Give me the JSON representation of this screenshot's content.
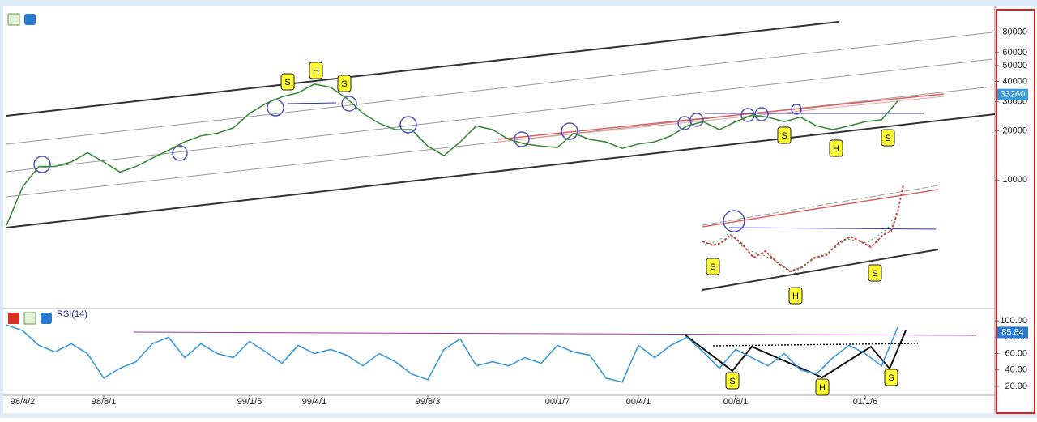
{
  "chart_data": [
    {
      "type": "line",
      "color": "#3c8a3c",
      "log_scale": true,
      "values": [
        5300,
        9100,
        12100,
        12100,
        12900,
        14700,
        12900,
        11200,
        12100,
        13600,
        15200,
        17100,
        18600,
        19300,
        20800,
        25500,
        29300,
        32200,
        34100,
        38500,
        36800,
        31500,
        25500,
        22200,
        20300,
        20300,
        16100,
        14100,
        17100,
        21400,
        20300,
        17700,
        16600,
        16100,
        15800,
        19300,
        17700,
        17100,
        15600,
        16600,
        17100,
        18600,
        21400,
        22700,
        20300,
        22700,
        24900,
        24200,
        22700,
        24200,
        21400,
        20300,
        21400,
        22700,
        23300,
        30300
      ],
      "ylim": [
        1700,
        112000
      ],
      "yticks": [
        10000,
        20000,
        30000,
        40000,
        50000,
        60000,
        80000
      ],
      "last_value": 33260,
      "annotations": [
        "S",
        "H",
        "S",
        "S",
        "H",
        "S",
        "S",
        "H",
        "S"
      ]
    },
    {
      "type": "line",
      "title": "RSI(14)",
      "color": "#3a9ad9",
      "categories": [
        null,
        "98/4/2",
        null,
        null,
        null,
        null,
        "98/8/1",
        null,
        null,
        null,
        null,
        null,
        null,
        null,
        null,
        "99/1/5",
        null,
        null,
        null,
        "99/4/1",
        null,
        null,
        null,
        null,
        null,
        null,
        "99/8/3",
        null,
        null,
        null,
        null,
        null,
        null,
        null,
        "00/1/7",
        null,
        null,
        null,
        null,
        "00/4/1",
        null,
        null,
        null,
        null,
        null,
        "00/8/1",
        null,
        null,
        null,
        null,
        null,
        null,
        null,
        "01/1/6",
        null,
        null
      ],
      "values": [
        95,
        88,
        70,
        62,
        72,
        60,
        30,
        42,
        50,
        72,
        80,
        55,
        72,
        60,
        55,
        75,
        62,
        48,
        70,
        60,
        65,
        58,
        45,
        60,
        50,
        35,
        28,
        65,
        78,
        45,
        50,
        45,
        55,
        48,
        70,
        62,
        58,
        30,
        25,
        70,
        55,
        70,
        80,
        62,
        42,
        65,
        55,
        45,
        60,
        40,
        35,
        55,
        70,
        60,
        45,
        92
      ],
      "ylim": [
        9,
        114
      ],
      "yticks": [
        {
          "value": 20,
          "label": "20.00"
        },
        {
          "value": 40,
          "label": "40.00"
        },
        {
          "value": 60,
          "label": "60.00"
        },
        {
          "value": 80,
          "label": "80.00"
        },
        {
          "value": 100,
          "label": "100.00"
        }
      ],
      "last_value": 85.84,
      "annotations": [
        "S",
        "H",
        "S"
      ]
    }
  ]
}
